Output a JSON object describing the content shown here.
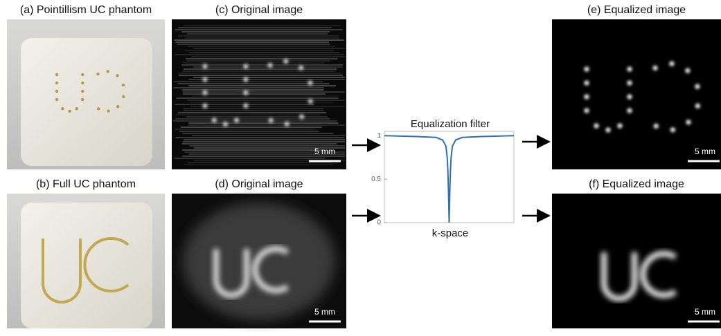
{
  "panels": [
    {
      "label": "(a) Pointillism UC phantom"
    },
    {
      "label": "(b) Full UC phantom"
    },
    {
      "label": "(c) Original image",
      "scale_bar": "5 mm"
    },
    {
      "label": "(d) Original image",
      "scale_bar": "5 mm"
    },
    {
      "label": "(e) Equalized image",
      "scale_bar": "5 mm"
    },
    {
      "label": "(f) Equalized image",
      "scale_bar": "5 mm"
    }
  ],
  "chart_data": {
    "type": "line",
    "title": "Equalization filter",
    "x_label": "k-space",
    "x": [
      -1,
      -0.5,
      -0.2,
      -0.1,
      -0.05,
      -0.03,
      -0.02,
      -0.01,
      0,
      0.01,
      0.02,
      0.03,
      0.05,
      0.1,
      0.2,
      0.5,
      1
    ],
    "values": [
      1,
      0.99,
      0.98,
      0.95,
      0.88,
      0.75,
      0.6,
      0.35,
      0,
      0.35,
      0.6,
      0.75,
      0.88,
      0.95,
      0.98,
      0.99,
      1
    ],
    "color": "#2f6db5",
    "xlim": [
      -1,
      1
    ],
    "ylim": [
      0,
      1.05
    ],
    "yticks": [
      0,
      0.5,
      1
    ]
  }
}
